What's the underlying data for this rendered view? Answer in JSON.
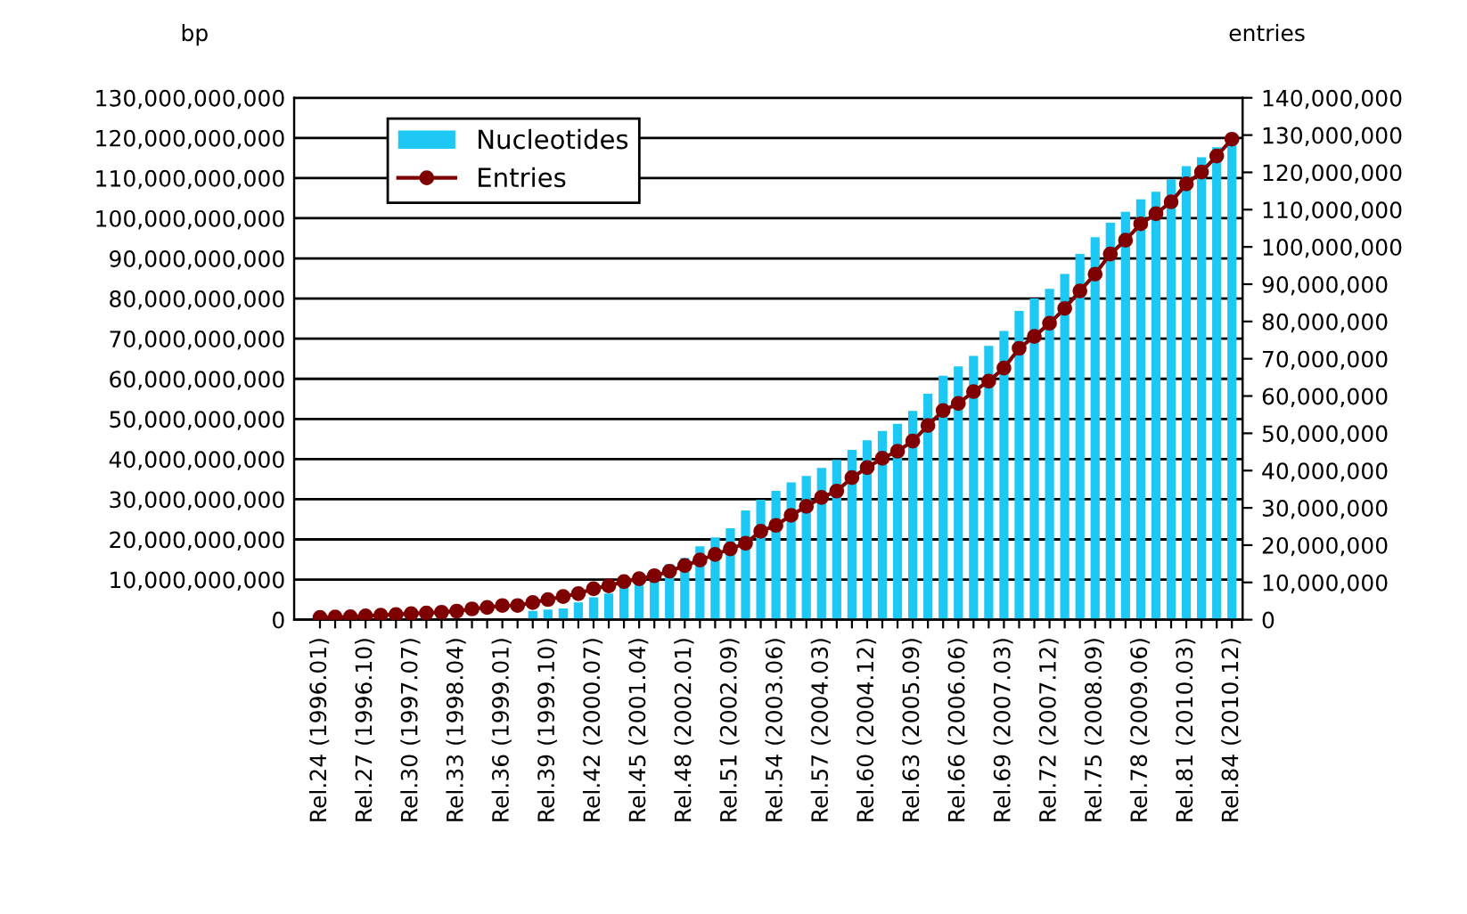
{
  "chart_data": {
    "type": "bar",
    "categories": [
      "Rel.24 (1996.01)",
      null,
      null,
      "Rel.27 (1996.10)",
      null,
      null,
      "Rel.30 (1997.07)",
      null,
      null,
      "Rel.33 (1998.04)",
      null,
      null,
      "Rel.36 (1999.01)",
      null,
      null,
      "Rel.39 (1999.10)",
      null,
      null,
      "Rel.42 (2000.07)",
      null,
      null,
      "Rel.45 (2001.04)",
      null,
      null,
      "Rel.48 (2002.01)",
      null,
      null,
      "Rel.51 (2002.09)",
      null,
      null,
      "Rel.54 (2003.06)",
      null,
      null,
      "Rel.57 (2004.03)",
      null,
      null,
      "Rel.60 (2004.12)",
      null,
      null,
      "Rel.63 (2005.09)",
      null,
      null,
      "Rel.66 (2006.06)",
      null,
      null,
      "Rel.69 (2007.03)",
      null,
      null,
      "Rel.72 (2007.12)",
      null,
      null,
      "Rel.75 (2008.09)",
      null,
      null,
      "Rel.78 (2009.06)",
      null,
      null,
      "Rel.81 (2010.03)",
      null,
      null,
      "Rel.84 (2010.12)"
    ],
    "series": [
      {
        "name": "Nucleotides",
        "color": "#1ec8f5",
        "values": [
          null,
          null,
          null,
          null,
          null,
          null,
          null,
          null,
          null,
          null,
          null,
          null,
          null,
          null,
          2200000000,
          2500000000,
          2800000000,
          4300000000,
          5600000000,
          6500000000,
          8700000000,
          9500000000,
          10200000000,
          13800000000,
          15400000000,
          18300000000,
          20500000000,
          22800000000,
          27200000000,
          29900000000,
          32100000000,
          34200000000,
          35800000000,
          37800000000,
          39800000000,
          42300000000,
          44700000000,
          47000000000,
          48800000000,
          52000000000,
          56300000000,
          60800000000,
          63100000000,
          65700000000,
          68200000000,
          71900000000,
          76900000000,
          80000000000,
          82400000000,
          86100000000,
          91100000000,
          95300000000,
          98900000000,
          101600000000,
          104700000000,
          106600000000,
          109700000000,
          113000000000,
          115200000000,
          117700000000,
          118900000000
        ]
      },
      {
        "name": "Entries",
        "type": "line",
        "axis": "y2",
        "color": "#7f0000",
        "values": [
          600000,
          700000,
          800000,
          1000000,
          1200000,
          1400000,
          1600000,
          1800000,
          2000000,
          2300000,
          2900000,
          3300000,
          3800000,
          3800000,
          4600000,
          5400000,
          6200000,
          7000000,
          8300000,
          9100000,
          10200000,
          11000000,
          11800000,
          13000000,
          14500000,
          16000000,
          17500000,
          19000000,
          20500000,
          23700000,
          25300000,
          28000000,
          30400000,
          32800000,
          34500000,
          38100000,
          40800000,
          43300000,
          45200000,
          47900000,
          52100000,
          56100000,
          58000000,
          61200000,
          64000000,
          67500000,
          72800000,
          76000000,
          79500000,
          83500000,
          88200000,
          92700000,
          98100000,
          101800000,
          106200000,
          108900000,
          112100000,
          116900000,
          120100000,
          124400000,
          128900000
        ]
      }
    ],
    "ylabel": "bp",
    "y2label": "entries",
    "ylim": [
      0,
      130000000000
    ],
    "yticks": [
      {
        "value": 0,
        "label": "0"
      },
      {
        "value": 10000000000,
        "label": "10,000,000,000"
      },
      {
        "value": 20000000000,
        "label": "20,000,000,000"
      },
      {
        "value": 30000000000,
        "label": "30,000,000,000"
      },
      {
        "value": 40000000000,
        "label": "40,000,000,000"
      },
      {
        "value": 50000000000,
        "label": "50,000,000,000"
      },
      {
        "value": 60000000000,
        "label": "60,000,000,000"
      },
      {
        "value": 70000000000,
        "label": "70,000,000,000"
      },
      {
        "value": 80000000000,
        "label": "80,000,000,000"
      },
      {
        "value": 90000000000,
        "label": "90,000,000,000"
      },
      {
        "value": 100000000000,
        "label": "100,000,000,000"
      },
      {
        "value": 110000000000,
        "label": "110,000,000,000"
      },
      {
        "value": 120000000000,
        "label": "120,000,000,000"
      },
      {
        "value": 130000000000,
        "label": "130,000,000,000"
      }
    ],
    "y2lim": [
      0,
      140000000
    ],
    "y2ticks": [
      {
        "value": 0,
        "label": "0"
      },
      {
        "value": 10000000,
        "label": "10,000,000"
      },
      {
        "value": 20000000,
        "label": "20,000,000"
      },
      {
        "value": 30000000,
        "label": "30,000,000"
      },
      {
        "value": 40000000,
        "label": "40,000,000"
      },
      {
        "value": 50000000,
        "label": "50,000,000"
      },
      {
        "value": 60000000,
        "label": "60,000,000"
      },
      {
        "value": 70000000,
        "label": "70,000,000"
      },
      {
        "value": 80000000,
        "label": "80,000,000"
      },
      {
        "value": 90000000,
        "label": "90,000,000"
      },
      {
        "value": 100000000,
        "label": "100,000,000"
      },
      {
        "value": 110000000,
        "label": "110,000,000"
      },
      {
        "value": 120000000,
        "label": "120,000,000"
      },
      {
        "value": 130000000,
        "label": "130,000,000"
      },
      {
        "value": 140000000,
        "label": "140,000,000"
      }
    ],
    "grid": "y",
    "legend": "top left",
    "marker": "circle",
    "line_style": "solid"
  }
}
